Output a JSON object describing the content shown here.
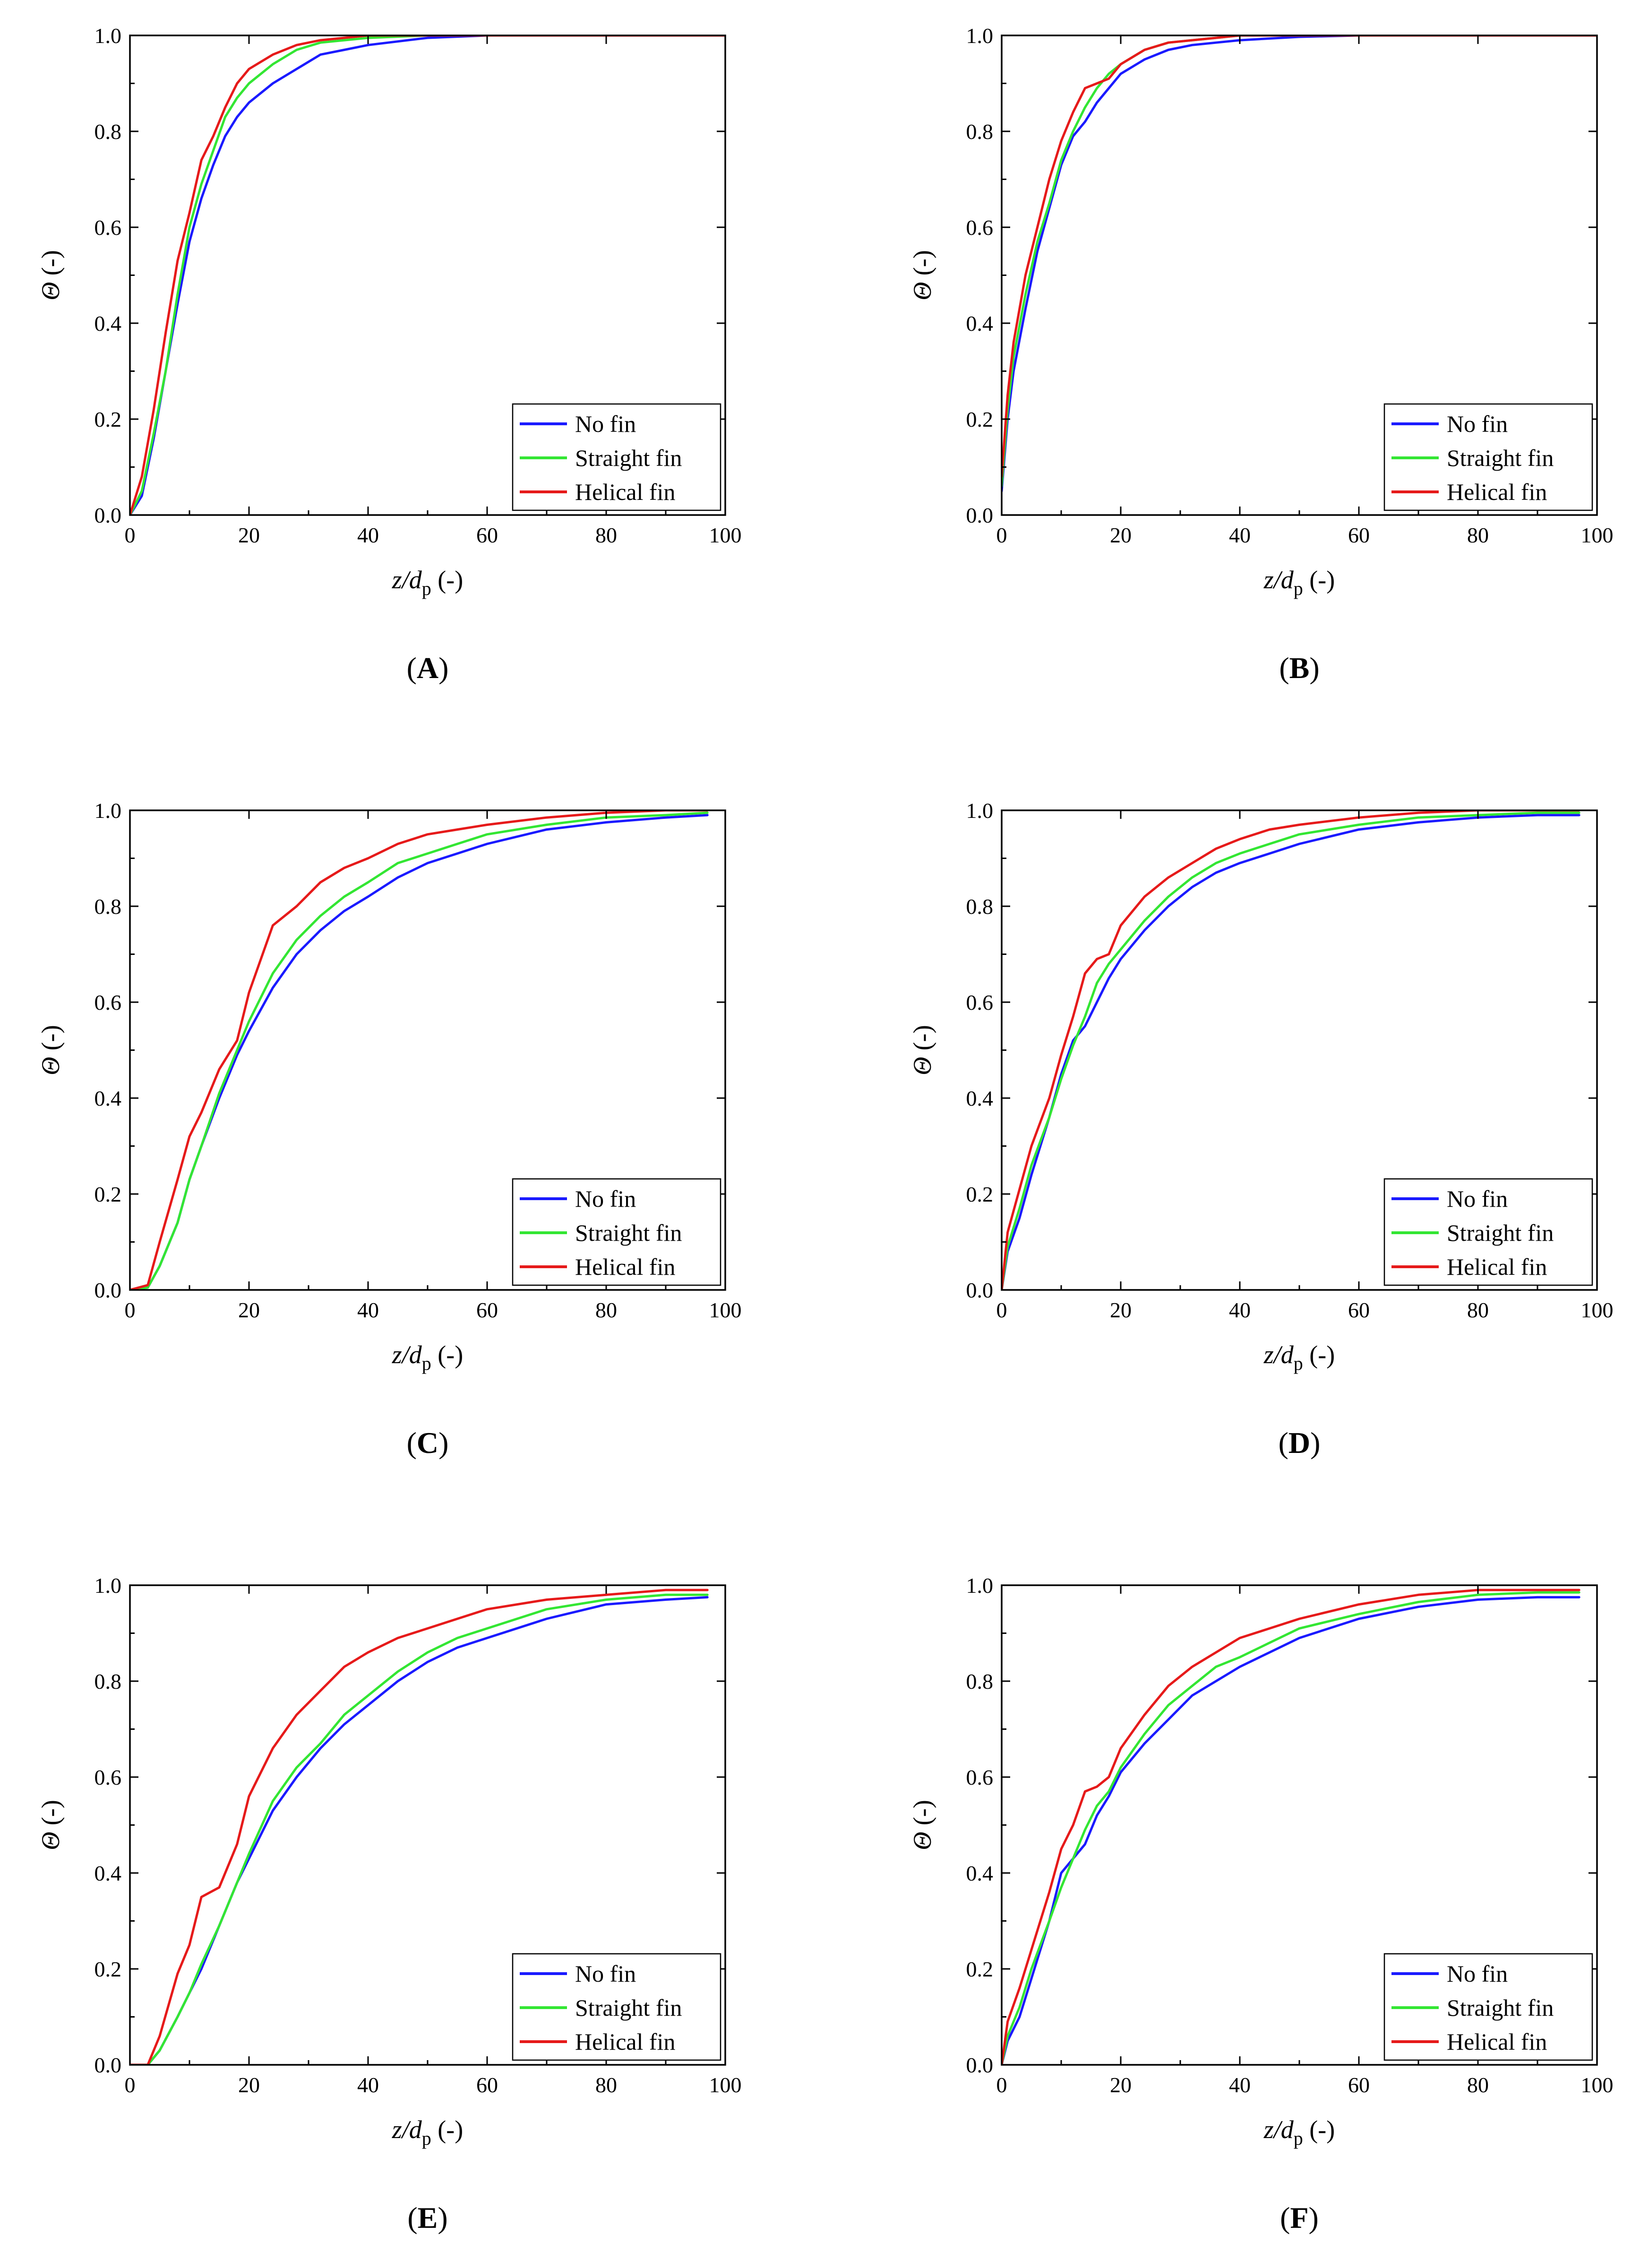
{
  "figure": {
    "legend_entries": [
      "No fin",
      "Straight fin",
      "Helical fin"
    ],
    "series_colors": {
      "No fin": "#1a1aff",
      "Straight fin": "#33e633",
      "Helical fin": "#e61a1a"
    }
  },
  "chart_data": [
    {
      "panel": "A",
      "label": "A",
      "type": "line",
      "xlabel_italic": "z/d",
      "xlabel_sub": "p",
      "xlabel_suffix": " (-)",
      "ylabel_italic": "Θ",
      "ylabel_suffix": " (-)",
      "xlim": [
        0,
        100
      ],
      "ylim": [
        0,
        1.0
      ],
      "xticks": [
        "0",
        "20",
        "40",
        "60",
        "80",
        "100"
      ],
      "yticks": [
        "0.0",
        "0.2",
        "0.4",
        "0.6",
        "0.8",
        "1.0"
      ],
      "legend_position": "bottom-right",
      "x": [
        0,
        2,
        4,
        6,
        8,
        10,
        12,
        14,
        16,
        18,
        20,
        24,
        28,
        32,
        36,
        40,
        50,
        60,
        70,
        80,
        90,
        100
      ],
      "series": [
        {
          "name": "No fin",
          "color": "#1a1aff",
          "values": [
            0,
            0.04,
            0.16,
            0.3,
            0.44,
            0.57,
            0.66,
            0.73,
            0.79,
            0.83,
            0.86,
            0.9,
            0.93,
            0.96,
            0.97,
            0.98,
            0.995,
            1.0,
            1.0,
            1.0,
            1.0,
            1.0
          ]
        },
        {
          "name": "Straight fin",
          "color": "#33e633",
          "values": [
            0,
            0.05,
            0.17,
            0.3,
            0.46,
            0.6,
            0.69,
            0.76,
            0.83,
            0.87,
            0.9,
            0.94,
            0.97,
            0.985,
            0.99,
            0.995,
            1.0,
            1.0,
            1.0,
            1.0,
            1.0,
            1.0
          ]
        },
        {
          "name": "Helical fin",
          "color": "#e61a1a",
          "values": [
            0,
            0.08,
            0.22,
            0.38,
            0.53,
            0.63,
            0.74,
            0.79,
            0.85,
            0.9,
            0.93,
            0.96,
            0.98,
            0.99,
            0.995,
            1.0,
            1.0,
            1.0,
            1.0,
            1.0,
            1.0,
            1.0
          ]
        }
      ]
    },
    {
      "panel": "B",
      "label": "B",
      "type": "line",
      "xlabel_italic": "z/d",
      "xlabel_sub": "p",
      "xlabel_suffix": " (-)",
      "ylabel_italic": "Θ",
      "ylabel_suffix": " (-)",
      "xlim": [
        0,
        100
      ],
      "ylim": [
        0,
        1.0
      ],
      "xticks": [
        "0",
        "20",
        "40",
        "60",
        "80",
        "100"
      ],
      "yticks": [
        "0.0",
        "0.2",
        "0.4",
        "0.6",
        "0.8",
        "1.0"
      ],
      "legend_position": "bottom-right",
      "x": [
        0,
        1,
        2,
        4,
        6,
        8,
        10,
        12,
        14,
        16,
        18,
        20,
        24,
        28,
        32,
        36,
        40,
        50,
        60,
        70,
        80,
        90,
        100
      ],
      "series": [
        {
          "name": "No fin",
          "color": "#1a1aff",
          "values": [
            0.05,
            0.2,
            0.3,
            0.43,
            0.55,
            0.64,
            0.73,
            0.79,
            0.82,
            0.86,
            0.89,
            0.92,
            0.95,
            0.97,
            0.98,
            0.985,
            0.99,
            0.997,
            1.0,
            1.0,
            1.0,
            1.0,
            1.0
          ]
        },
        {
          "name": "Straight fin",
          "color": "#33e633",
          "values": [
            0.06,
            0.22,
            0.33,
            0.46,
            0.57,
            0.65,
            0.74,
            0.8,
            0.85,
            0.89,
            0.92,
            0.94,
            0.97,
            0.985,
            0.99,
            0.995,
            1.0,
            1.0,
            1.0,
            1.0,
            1.0,
            1.0,
            1.0
          ]
        },
        {
          "name": "Helical fin",
          "color": "#e61a1a",
          "values": [
            0.08,
            0.25,
            0.36,
            0.5,
            0.6,
            0.7,
            0.78,
            0.84,
            0.89,
            0.9,
            0.91,
            0.94,
            0.97,
            0.985,
            0.99,
            0.995,
            1.0,
            1.0,
            1.0,
            1.0,
            1.0,
            1.0,
            1.0
          ]
        }
      ]
    },
    {
      "panel": "C",
      "label": "C",
      "type": "line",
      "xlabel_italic": "z/d",
      "xlabel_sub": "p",
      "xlabel_suffix": " (-)",
      "ylabel_italic": "Θ",
      "ylabel_suffix": " (-)",
      "xlim": [
        0,
        100
      ],
      "ylim": [
        0,
        1.0
      ],
      "xticks": [
        "0",
        "20",
        "40",
        "60",
        "80",
        "100"
      ],
      "yticks": [
        "0.0",
        "0.2",
        "0.4",
        "0.6",
        "0.8",
        "1.0"
      ],
      "legend_position": "bottom-right",
      "x": [
        0,
        3,
        5,
        8,
        10,
        12,
        15,
        18,
        20,
        24,
        28,
        32,
        36,
        40,
        45,
        50,
        55,
        60,
        70,
        80,
        90,
        97
      ],
      "series": [
        {
          "name": "No fin",
          "color": "#1a1aff",
          "values": [
            0,
            0.005,
            0.05,
            0.14,
            0.23,
            0.3,
            0.4,
            0.49,
            0.54,
            0.63,
            0.7,
            0.75,
            0.79,
            0.82,
            0.86,
            0.89,
            0.91,
            0.93,
            0.96,
            0.975,
            0.985,
            0.99
          ]
        },
        {
          "name": "Straight fin",
          "color": "#33e633",
          "values": [
            0,
            0.005,
            0.05,
            0.14,
            0.23,
            0.3,
            0.41,
            0.5,
            0.56,
            0.66,
            0.73,
            0.78,
            0.82,
            0.85,
            0.89,
            0.91,
            0.93,
            0.95,
            0.97,
            0.985,
            0.99,
            0.995
          ]
        },
        {
          "name": "Helical fin",
          "color": "#e61a1a",
          "values": [
            0,
            0.01,
            0.1,
            0.23,
            0.32,
            0.37,
            0.46,
            0.52,
            0.62,
            0.76,
            0.8,
            0.85,
            0.88,
            0.9,
            0.93,
            0.95,
            0.96,
            0.97,
            0.985,
            0.995,
            1.0,
            1.0
          ]
        }
      ]
    },
    {
      "panel": "D",
      "label": "D",
      "type": "line",
      "xlabel_italic": "z/d",
      "xlabel_sub": "p",
      "xlabel_suffix": " (-)",
      "ylabel_italic": "Θ",
      "ylabel_suffix": " (-)",
      "xlim": [
        0,
        100
      ],
      "ylim": [
        0,
        1.0
      ],
      "xticks": [
        "0",
        "20",
        "40",
        "60",
        "80",
        "100"
      ],
      "yticks": [
        "0.0",
        "0.2",
        "0.4",
        "0.6",
        "0.8",
        "1.0"
      ],
      "legend_position": "bottom-right",
      "x": [
        0,
        1,
        3,
        5,
        8,
        10,
        12,
        14,
        16,
        18,
        20,
        24,
        28,
        32,
        36,
        40,
        45,
        50,
        60,
        70,
        80,
        90,
        97
      ],
      "series": [
        {
          "name": "No fin",
          "color": "#1a1aff",
          "values": [
            0,
            0.08,
            0.15,
            0.24,
            0.36,
            0.45,
            0.52,
            0.55,
            0.6,
            0.65,
            0.69,
            0.75,
            0.8,
            0.84,
            0.87,
            0.89,
            0.91,
            0.93,
            0.96,
            0.975,
            0.985,
            0.99,
            0.99
          ]
        },
        {
          "name": "Straight fin",
          "color": "#33e633",
          "values": [
            0,
            0.09,
            0.17,
            0.26,
            0.36,
            0.44,
            0.51,
            0.57,
            0.64,
            0.68,
            0.71,
            0.77,
            0.82,
            0.86,
            0.89,
            0.91,
            0.93,
            0.95,
            0.97,
            0.985,
            0.99,
            0.995,
            0.995
          ]
        },
        {
          "name": "Helical fin",
          "color": "#e61a1a",
          "values": [
            0,
            0.12,
            0.21,
            0.3,
            0.4,
            0.49,
            0.57,
            0.66,
            0.69,
            0.7,
            0.76,
            0.82,
            0.86,
            0.89,
            0.92,
            0.94,
            0.96,
            0.97,
            0.985,
            0.995,
            1.0,
            1.0,
            1.0
          ]
        }
      ]
    },
    {
      "panel": "E",
      "label": "E",
      "type": "line",
      "xlabel_italic": "z/d",
      "xlabel_sub": "p",
      "xlabel_suffix": " (-)",
      "ylabel_italic": "Θ",
      "ylabel_suffix": " (-)",
      "xlim": [
        0,
        100
      ],
      "ylim": [
        0,
        1.0
      ],
      "xticks": [
        "0",
        "20",
        "40",
        "60",
        "80",
        "100"
      ],
      "yticks": [
        "0.0",
        "0.2",
        "0.4",
        "0.6",
        "0.8",
        "1.0"
      ],
      "legend_position": "bottom-right",
      "x": [
        0,
        3,
        5,
        8,
        10,
        12,
        15,
        18,
        20,
        24,
        28,
        32,
        36,
        40,
        45,
        50,
        55,
        60,
        70,
        80,
        90,
        97
      ],
      "series": [
        {
          "name": "No fin",
          "color": "#1a1aff",
          "values": [
            0,
            0.0,
            0.03,
            0.1,
            0.15,
            0.2,
            0.29,
            0.38,
            0.43,
            0.53,
            0.6,
            0.66,
            0.71,
            0.75,
            0.8,
            0.84,
            0.87,
            0.89,
            0.93,
            0.96,
            0.97,
            0.975
          ]
        },
        {
          "name": "Straight fin",
          "color": "#33e633",
          "values": [
            0,
            0.0,
            0.03,
            0.1,
            0.15,
            0.21,
            0.29,
            0.38,
            0.44,
            0.55,
            0.62,
            0.67,
            0.73,
            0.77,
            0.82,
            0.86,
            0.89,
            0.91,
            0.95,
            0.97,
            0.98,
            0.98
          ]
        },
        {
          "name": "Helical fin",
          "color": "#e61a1a",
          "values": [
            0,
            0.0,
            0.06,
            0.19,
            0.25,
            0.35,
            0.37,
            0.46,
            0.56,
            0.66,
            0.73,
            0.78,
            0.83,
            0.86,
            0.89,
            0.91,
            0.93,
            0.95,
            0.97,
            0.98,
            0.99,
            0.99
          ]
        }
      ]
    },
    {
      "panel": "F",
      "label": "F",
      "type": "line",
      "xlabel_italic": "z/d",
      "xlabel_sub": "p",
      "xlabel_suffix": " (-)",
      "ylabel_italic": "Θ",
      "ylabel_suffix": " (-)",
      "xlim": [
        0,
        100
      ],
      "ylim": [
        0,
        1.0
      ],
      "xticks": [
        "0",
        "20",
        "40",
        "60",
        "80",
        "100"
      ],
      "yticks": [
        "0.0",
        "0.2",
        "0.4",
        "0.6",
        "0.8",
        "1.0"
      ],
      "legend_position": "bottom-right",
      "x": [
        0,
        1,
        3,
        5,
        8,
        10,
        12,
        14,
        16,
        18,
        20,
        24,
        28,
        32,
        36,
        40,
        45,
        50,
        60,
        70,
        80,
        90,
        97
      ],
      "series": [
        {
          "name": "No fin",
          "color": "#1a1aff",
          "values": [
            0,
            0.05,
            0.1,
            0.18,
            0.3,
            0.4,
            0.43,
            0.46,
            0.52,
            0.56,
            0.61,
            0.67,
            0.72,
            0.77,
            0.8,
            0.83,
            0.86,
            0.89,
            0.93,
            0.955,
            0.97,
            0.975,
            0.975
          ]
        },
        {
          "name": "Straight fin",
          "color": "#33e633",
          "values": [
            0,
            0.06,
            0.12,
            0.2,
            0.3,
            0.37,
            0.43,
            0.49,
            0.54,
            0.57,
            0.62,
            0.69,
            0.75,
            0.79,
            0.83,
            0.85,
            0.88,
            0.91,
            0.94,
            0.965,
            0.98,
            0.985,
            0.985
          ]
        },
        {
          "name": "Helical fin",
          "color": "#e61a1a",
          "values": [
            0,
            0.09,
            0.16,
            0.24,
            0.36,
            0.45,
            0.5,
            0.57,
            0.58,
            0.6,
            0.66,
            0.73,
            0.79,
            0.83,
            0.86,
            0.89,
            0.91,
            0.93,
            0.96,
            0.98,
            0.99,
            0.99,
            0.99
          ]
        }
      ]
    }
  ]
}
